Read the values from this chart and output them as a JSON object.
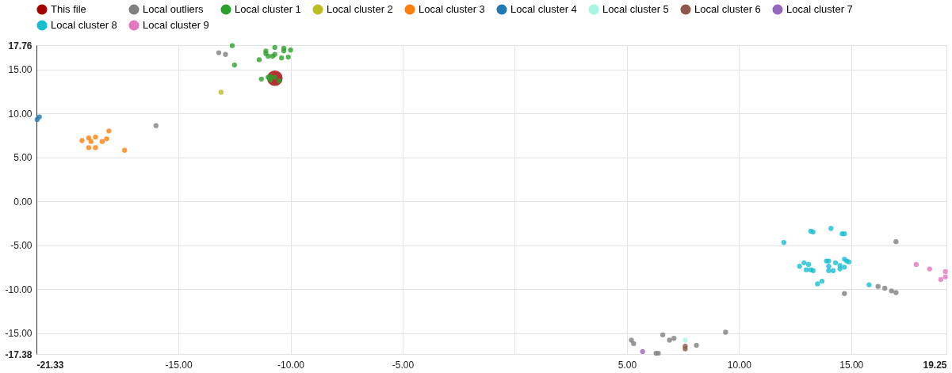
{
  "chart_data": {
    "type": "scatter",
    "marker": "circle",
    "legend": "top",
    "grid": true,
    "xlim": [
      -21.33,
      19.25
    ],
    "ylim": [
      -17.38,
      17.76
    ],
    "xticks": [
      {
        "value": -21.33,
        "label": "-21.33"
      },
      {
        "value": -15,
        "label": "-15.00"
      },
      {
        "value": -10,
        "label": "-10.00"
      },
      {
        "value": -5,
        "label": "-5.00"
      },
      {
        "value": 0,
        "label": null
      },
      {
        "value": 5,
        "label": "5.00"
      },
      {
        "value": 10,
        "label": "10.00"
      },
      {
        "value": 15,
        "label": "15.00"
      },
      {
        "value": 19.25,
        "label": "19.25"
      }
    ],
    "yticks": [
      {
        "value": -17.38,
        "label": "-17.38"
      },
      {
        "value": -15,
        "label": "-15.00"
      },
      {
        "value": -10,
        "label": "-10.00"
      },
      {
        "value": -5,
        "label": "-5.00"
      },
      {
        "value": 0,
        "label": "0.00"
      },
      {
        "value": 5,
        "label": "5.00"
      },
      {
        "value": 10,
        "label": "10.00"
      },
      {
        "value": 15,
        "label": "15.00"
      },
      {
        "value": 17.76,
        "label": "17.76"
      }
    ],
    "series": [
      {
        "name": "This file",
        "color": "#a50000",
        "x": [
          -10.7
        ],
        "values": [
          14.0
        ]
      },
      {
        "name": "Local outliers",
        "color": "#808080",
        "x": [
          -16.0,
          -13.2,
          -12.9,
          17.0,
          14.7,
          16.2,
          16.5,
          16.8,
          17.0,
          5.2,
          5.3,
          6.6,
          6.9,
          7.1,
          6.3,
          6.4,
          8.1,
          9.4
        ],
        "values": [
          8.6,
          16.9,
          16.7,
          -4.6,
          -10.5,
          -9.7,
          -9.9,
          -10.2,
          -10.4,
          -15.8,
          -16.2,
          -15.2,
          -15.8,
          -15.6,
          -17.3,
          -17.3,
          -16.4,
          -14.9
        ]
      },
      {
        "name": "Local cluster 1",
        "color": "#2ca02c",
        "x": [
          -12.6,
          -12.5,
          -11.1,
          -11.1,
          -11.0,
          -10.7,
          -10.8,
          -10.7,
          -10.3,
          -10.3,
          -10.0,
          -10.1,
          -10.4,
          -11.4,
          -11.3,
          -11.0,
          -10.9,
          -10.7,
          -10.5,
          -10.9
        ],
        "values": [
          17.7,
          15.5,
          17.1,
          16.8,
          16.5,
          17.5,
          16.5,
          16.7,
          17.4,
          17.1,
          17.2,
          16.4,
          16.3,
          16.1,
          13.9,
          14.1,
          13.8,
          14.1,
          13.7,
          14.2
        ]
      },
      {
        "name": "Local cluster 2",
        "color": "#bcbd22",
        "x": [
          -13.1
        ],
        "values": [
          12.4
        ]
      },
      {
        "name": "Local cluster 3",
        "color": "#ff7f0e",
        "x": [
          -19.3,
          -19.0,
          -18.9,
          -18.7,
          -18.4,
          -18.2,
          -18.1,
          -19.0,
          -18.7,
          -17.4
        ],
        "values": [
          6.9,
          7.2,
          6.8,
          7.3,
          6.8,
          7.1,
          8.0,
          6.1,
          6.1,
          5.8
        ]
      },
      {
        "name": "Local cluster 4",
        "color": "#1f77b4",
        "x": [
          -21.3,
          -21.2
        ],
        "values": [
          9.3,
          9.6
        ]
      },
      {
        "name": "Local cluster 5",
        "color": "#a6f5e3",
        "x": [
          7.6
        ],
        "values": [
          -15.8
        ]
      },
      {
        "name": "Local cluster 6",
        "color": "#8c564b",
        "x": [
          7.6,
          7.6
        ],
        "values": [
          -16.5,
          -16.8
        ]
      },
      {
        "name": "Local cluster 7",
        "color": "#9467bd",
        "x": [
          5.7
        ],
        "values": [
          -17.1
        ]
      },
      {
        "name": "Local cluster 8",
        "color": "#17becf",
        "x": [
          12.0,
          13.2,
          13.3,
          14.1,
          14.6,
          14.7,
          12.7,
          12.9,
          13.1,
          13.0,
          13.2,
          13.3,
          13.5,
          13.7,
          13.9,
          14.0,
          14.0,
          14.0,
          14.2,
          14.3,
          14.5,
          14.5,
          14.7,
          14.8,
          14.9,
          14.7,
          15.8
        ],
        "values": [
          -4.7,
          -3.4,
          -3.5,
          -3.1,
          -3.7,
          -3.7,
          -7.4,
          -7.0,
          -7.2,
          -7.8,
          -7.8,
          -7.9,
          -9.4,
          -9.1,
          -6.8,
          -6.8,
          -7.4,
          -7.9,
          -7.9,
          -7.0,
          -7.7,
          -7.3,
          -6.6,
          -6.8,
          -6.9,
          -7.5,
          -9.5
        ]
      },
      {
        "name": "Local cluster 9",
        "color": "#e377c2",
        "x": [
          17.9,
          18.5,
          19.0,
          19.2,
          19.2
        ],
        "values": [
          -7.2,
          -7.7,
          -8.9,
          -8.0,
          -8.6
        ]
      }
    ]
  }
}
